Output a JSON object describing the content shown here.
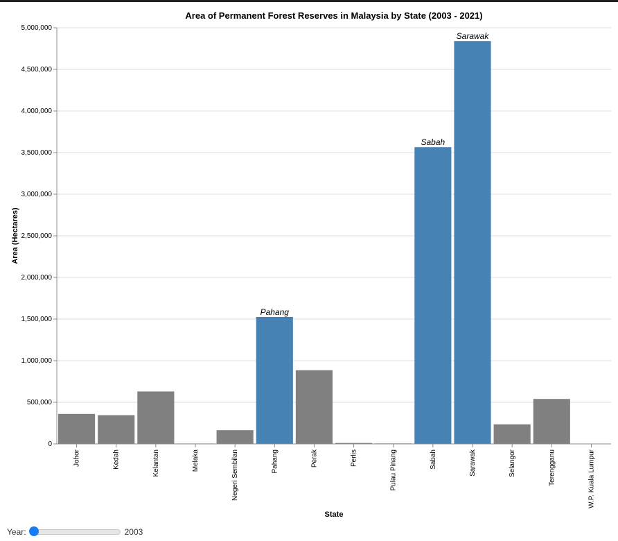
{
  "chart_data": {
    "type": "bar",
    "title": "Area of Permanent Forest Reserves in Malaysia by State (2003 - 2021)",
    "xlabel": "State",
    "ylabel": "Area (Hectares)",
    "ylim": [
      0,
      5000000
    ],
    "yticks": [
      0,
      500000,
      1000000,
      1500000,
      2000000,
      2500000,
      3000000,
      3500000,
      4000000,
      4500000,
      5000000
    ],
    "ytick_labels": [
      "0",
      "500,000",
      "1,000,000",
      "1,500,000",
      "2,000,000",
      "2,500,000",
      "3,000,000",
      "3,500,000",
      "4,000,000",
      "4,500,000",
      "5,000,000"
    ],
    "grid": true,
    "categories": [
      "Johor",
      "Kedah",
      "Kelantan",
      "Melaka",
      "Negeri Sembilan",
      "Pahang",
      "Perak",
      "Perlis",
      "Pulau Pinang",
      "Sabah",
      "Sarawak",
      "Selangor",
      "Terengganu",
      "W.P. Kuala Lumpur"
    ],
    "values": [
      360000,
      345000,
      630000,
      5000,
      165000,
      1525000,
      885000,
      11000,
      6000,
      3565000,
      4840000,
      235000,
      540000,
      0
    ],
    "highlighted": [
      "Pahang",
      "Sabah",
      "Sarawak"
    ],
    "annotations": [
      "Pahang",
      "Sabah",
      "Sarawak"
    ],
    "colors": {
      "highlight": "#4682b4",
      "default": "#808080"
    }
  },
  "slider": {
    "label": "Year:",
    "value": "2003"
  }
}
